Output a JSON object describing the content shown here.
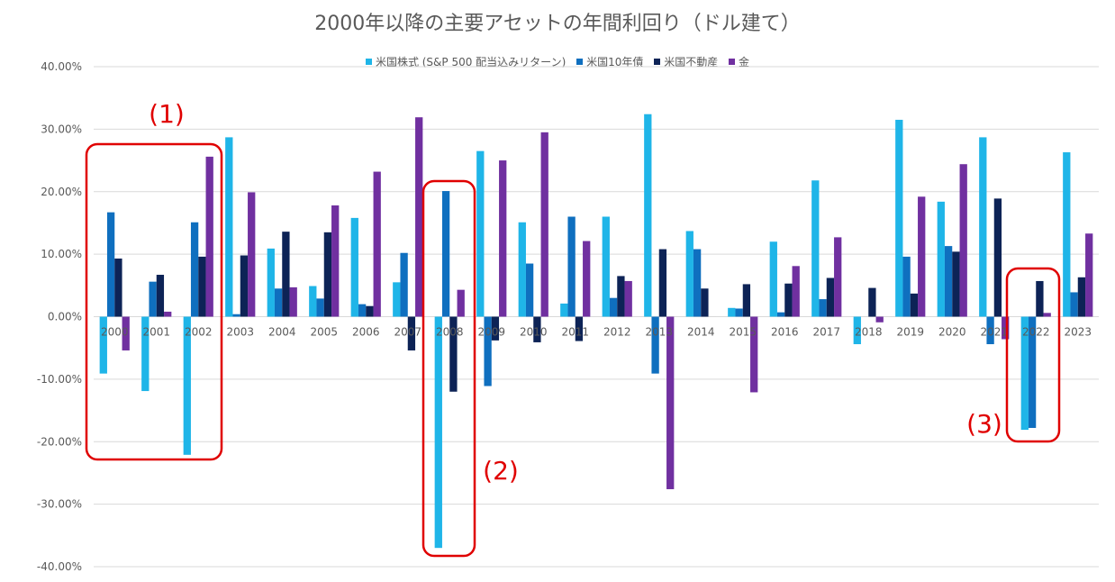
{
  "chart_data": {
    "type": "bar",
    "title": "2000年以降の主要アセットの年間利回り（ドル建て）",
    "categories": [
      "2000",
      "2001",
      "2002",
      "2003",
      "2004",
      "2005",
      "2006",
      "2007",
      "2008",
      "2009",
      "2010",
      "2011",
      "2012",
      "2013",
      "2014",
      "2015",
      "2016",
      "2017",
      "2018",
      "2019",
      "2020",
      "2021",
      "2022",
      "2023"
    ],
    "series": [
      {
        "name": "米国株式 (S&P 500 配当込みリターン)",
        "color": "#1FB5E8",
        "values": [
          -9.1,
          -11.9,
          -22.1,
          28.7,
          10.9,
          4.9,
          15.8,
          5.5,
          -37.0,
          26.5,
          15.1,
          2.1,
          16.0,
          32.4,
          13.7,
          1.4,
          12.0,
          21.8,
          -4.4,
          31.5,
          18.4,
          28.7,
          -18.1,
          26.3
        ]
      },
      {
        "name": "米国10年債",
        "color": "#0F6FBF",
        "values": [
          16.7,
          5.6,
          15.1,
          0.4,
          4.5,
          2.9,
          2.0,
          10.2,
          20.1,
          -11.1,
          8.5,
          16.0,
          3.0,
          -9.1,
          10.8,
          1.3,
          0.7,
          2.8,
          0.0,
          9.6,
          11.3,
          -4.4,
          -17.8,
          3.9
        ]
      },
      {
        "name": "米国不動産",
        "color": "#0D2356",
        "values": [
          9.3,
          6.7,
          9.6,
          9.8,
          13.6,
          13.5,
          1.7,
          -5.4,
          -12.0,
          -3.8,
          -4.1,
          -3.9,
          6.5,
          10.8,
          4.5,
          5.2,
          5.3,
          6.2,
          4.6,
          3.7,
          10.4,
          18.9,
          5.7,
          6.3
        ]
      },
      {
        "name": "金",
        "color": "#7030A0",
        "values": [
          -5.4,
          0.8,
          25.6,
          19.9,
          4.7,
          17.8,
          23.2,
          31.9,
          4.3,
          25.0,
          29.5,
          12.1,
          5.7,
          -27.6,
          0.0,
          -12.1,
          8.1,
          12.7,
          -0.9,
          19.2,
          24.4,
          -3.6,
          0.6,
          13.3
        ]
      }
    ],
    "ylim": [
      -40,
      40
    ],
    "y_ticks": [
      "40.00%",
      "30.00%",
      "20.00%",
      "10.00%",
      "0.00%",
      "-10.00%",
      "-20.00%",
      "-30.00%",
      "-40.00%"
    ],
    "grid": true,
    "legend_position": "top",
    "annotations": [
      {
        "label": "(1)",
        "from": "2000",
        "to": "2002",
        "color": "#E00000"
      },
      {
        "label": "(2)",
        "from": "2008",
        "to": "2008",
        "color": "#E00000"
      },
      {
        "label": "(3)",
        "from": "2022",
        "to": "2022",
        "color": "#E00000"
      }
    ]
  }
}
